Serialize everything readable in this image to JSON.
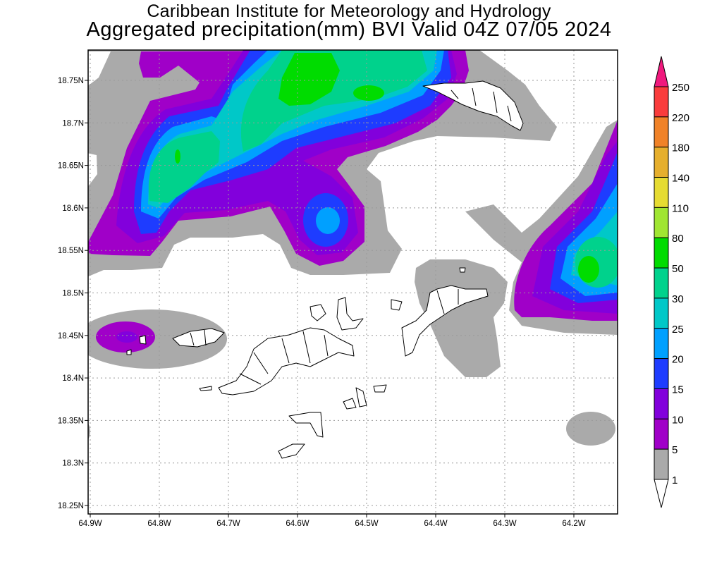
{
  "header": {
    "title_line1": "Caribbean Institute for Meteorology and Hydrology",
    "title_line2": "Aggregated precipitation(mm) BVI Valid 04Z 07/05 2024"
  },
  "axes": {
    "lat_labels": [
      "18.75N",
      "18.7N",
      "18.65N",
      "18.6N",
      "18.55N",
      "18.5N",
      "18.45N",
      "18.4N",
      "18.35N",
      "18.3N",
      "18.25N"
    ],
    "lon_labels": [
      "64.9W",
      "64.8W",
      "64.7W",
      "64.6W",
      "64.5W",
      "64.4W",
      "64.3W",
      "64.2W"
    ]
  },
  "colorbar": {
    "labels": [
      "250",
      "220",
      "180",
      "140",
      "110",
      "80",
      "50",
      "30",
      "25",
      "20",
      "15",
      "10",
      "5",
      "1"
    ],
    "band_colors": [
      "#fa3c3c",
      "#f08228",
      "#e6af2d",
      "#e6dc32",
      "#a0e632",
      "#00dc00",
      "#00d28c",
      "#00c8c8",
      "#00a0ff",
      "#1e3cff",
      "#8200dc",
      "#a000c8",
      "#aaaaaa"
    ],
    "over_color": "#f0197d",
    "under_color": "#ffffff"
  },
  "palette": {
    "grey": "#aaaaaa",
    "p5": "#a000c8",
    "p10": "#8200dc",
    "p15": "#1e3cff",
    "p20": "#00a0ff",
    "p25": "#00c8c8",
    "p30": "#00d28c",
    "p50": "#00dc00"
  }
}
